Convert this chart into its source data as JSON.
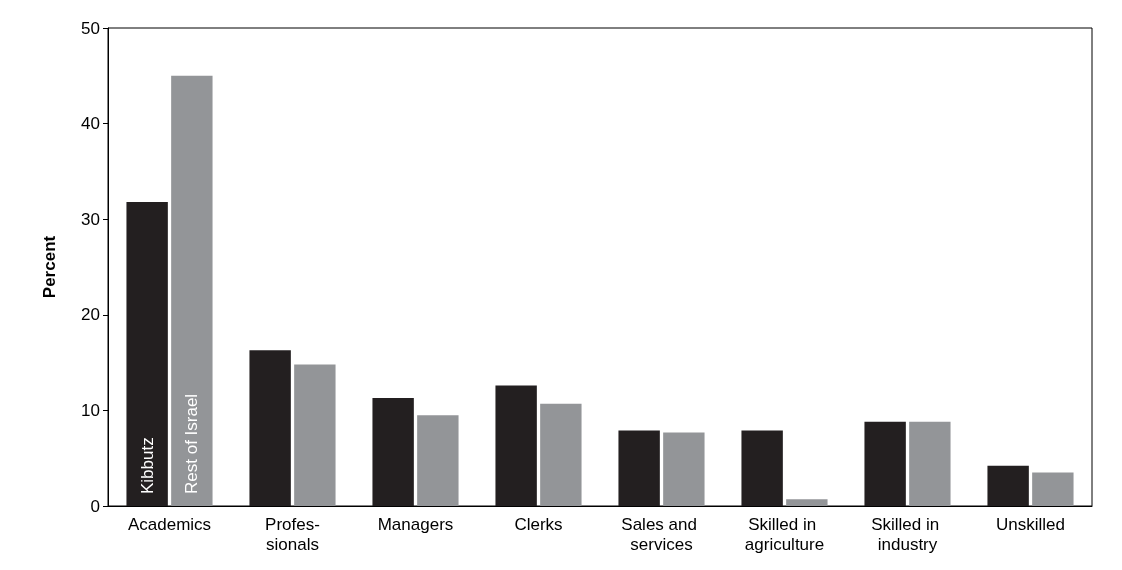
{
  "chart_data": {
    "type": "bar",
    "ylabel": "Percent",
    "categories": [
      "Academics",
      "Profes-\nsionals",
      "Managers",
      "Clerks",
      "Sales and services",
      "Skilled in agriculture",
      "Skilled in industry",
      "Unskilled"
    ],
    "series": [
      {
        "name": "Kibbutz",
        "color": "#231f20",
        "values": [
          31.8,
          16.3,
          11.3,
          12.6,
          7.9,
          7.9,
          8.8,
          4.2
        ]
      },
      {
        "name": "Rest of Israel",
        "color": "#939598",
        "values": [
          45.0,
          14.8,
          9.5,
          10.7,
          7.7,
          0.7,
          8.8,
          3.5
        ]
      }
    ],
    "ylim": [
      0,
      50
    ],
    "yticks": [
      0,
      10,
      20,
      30,
      40,
      50
    ],
    "grid": false,
    "legend": false
  }
}
